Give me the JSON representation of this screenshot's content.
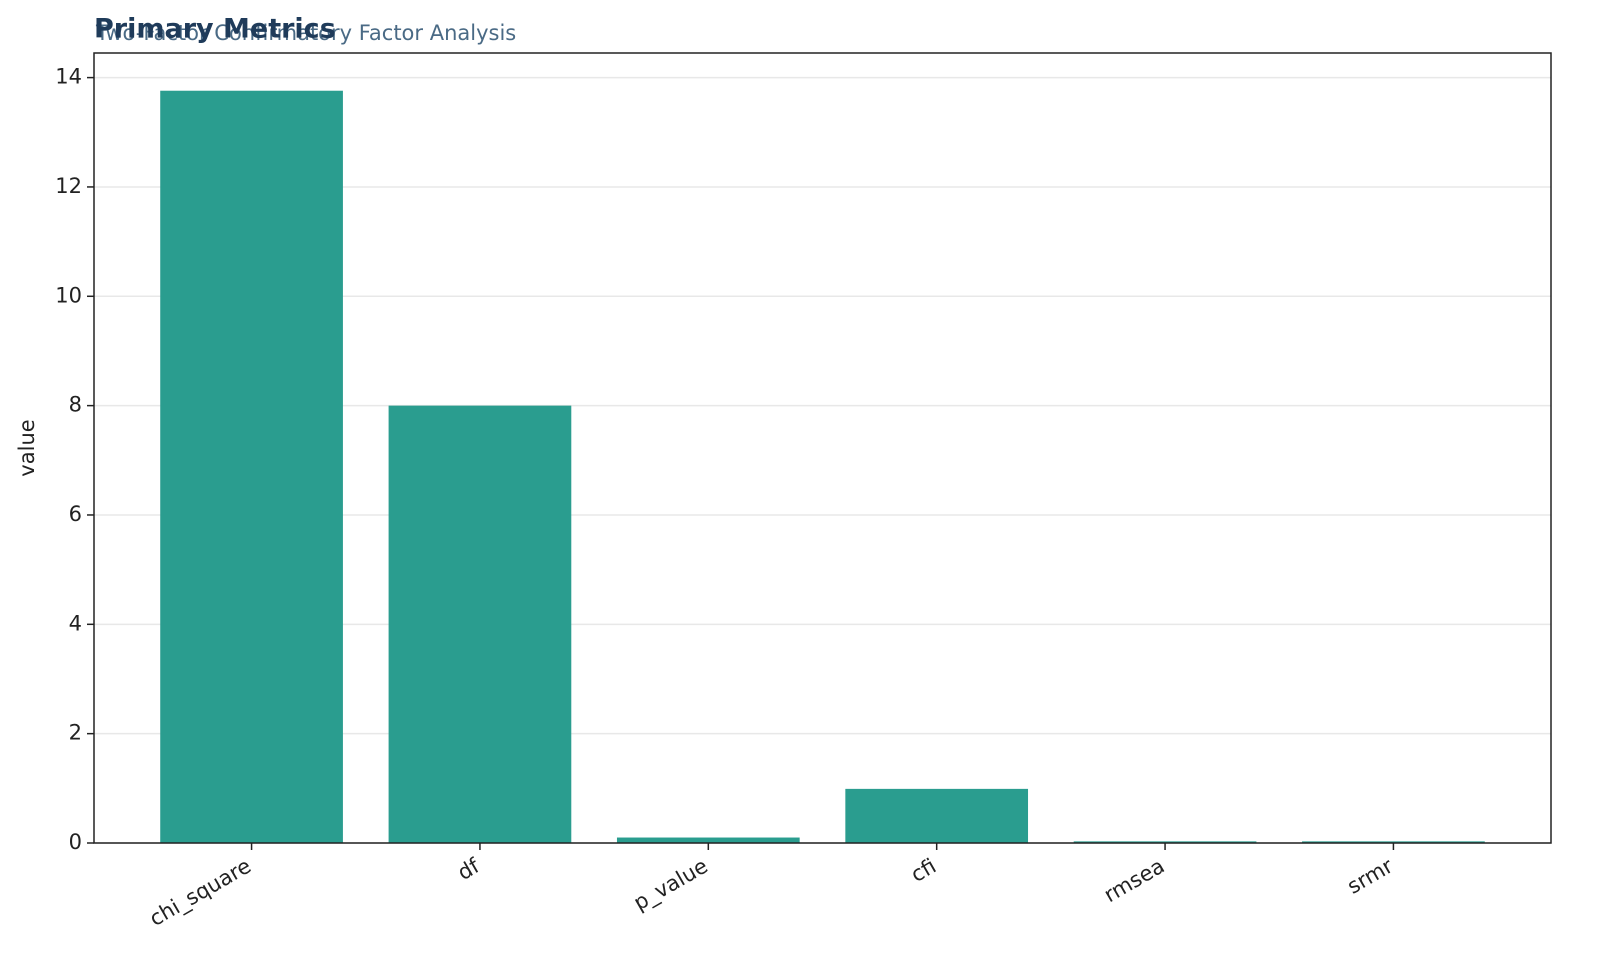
{
  "chart_data": {
    "type": "bar",
    "title": "Primary Metrics",
    "subtitle": "Two-Factor Confirmatory Factor Analysis",
    "y_label": "value",
    "categories": [
      "chi_square",
      "df",
      "p_value",
      "cfi",
      "rmsea",
      "srmr"
    ],
    "values": [
      13.76,
      8,
      0.1,
      0.99,
      0.03,
      0.03
    ],
    "color": "#2a9d8f",
    "ylim": [
      0,
      14.45
    ],
    "yticks": [
      0,
      2,
      4,
      6,
      8,
      10,
      12,
      14
    ],
    "grid": true
  }
}
